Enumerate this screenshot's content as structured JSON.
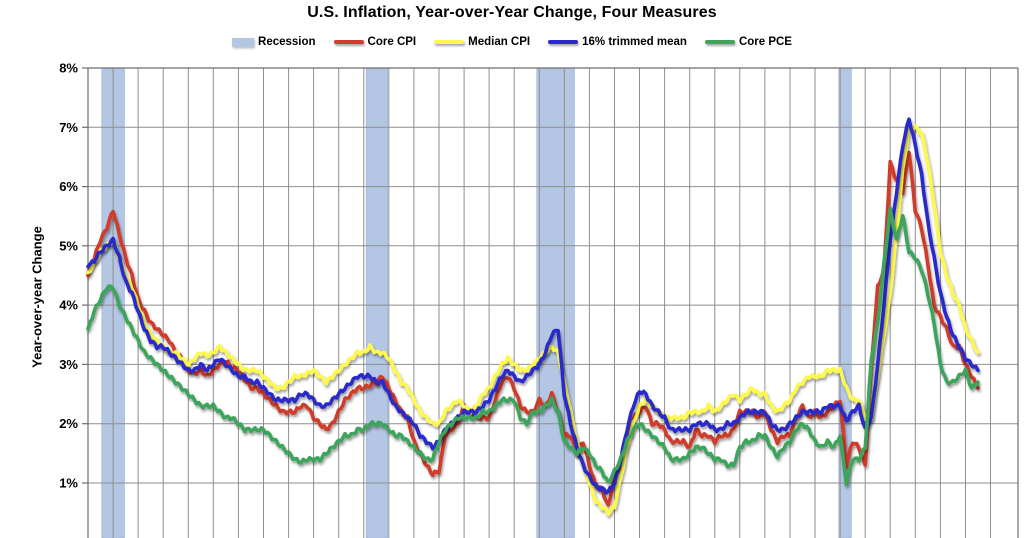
{
  "header": {
    "title": "U.S. Inflation, Year-over-Year Change, Four Measures"
  },
  "legend": [
    {
      "label": "Recession",
      "swatch": "patch",
      "color": "#b3c6e4"
    },
    {
      "label": "Core CPI",
      "swatch": "line",
      "color": "#d13b2b"
    },
    {
      "label": "Median CPI",
      "swatch": "line",
      "color": "#fdf84d"
    },
    {
      "label": "16% trimmed mean",
      "swatch": "line",
      "color": "#2929cb"
    },
    {
      "label": "Core PCE",
      "swatch": "line",
      "color": "#3ea45b"
    }
  ],
  "chart_data": {
    "type": "line",
    "title": "U.S. Inflation, Year-over-Year Change, Four Measures",
    "ylabel": "Year-over-year Change",
    "xlabel": "",
    "y_ticks": [
      "8%",
      "7%",
      "6%",
      "5%",
      "4%",
      "3%",
      "2%",
      "1%",
      "0%"
    ],
    "ylim": [
      0,
      8
    ],
    "grid": true,
    "legend_position": "top",
    "x_unit": "year",
    "x_start": 1990,
    "x_step": 0.25,
    "x_end": 2025.5,
    "x_axis_note": "x-axis labels cut off at bottom edge of screenshot; span is Jan 1990 to mid 2025",
    "recession_bands": [
      [
        1990.55,
        1991.45
      ],
      [
        2001.1,
        2001.95
      ],
      [
        2007.9,
        2009.4
      ],
      [
        2019.95,
        2020.45
      ]
    ],
    "series": [
      {
        "name": "Core CPI",
        "color": "#d13b2b",
        "values": [
          4.5,
          4.8,
          5.1,
          5.3,
          5.6,
          5.2,
          4.8,
          4.5,
          4.1,
          3.9,
          3.7,
          3.6,
          3.5,
          3.4,
          3.2,
          3.1,
          2.9,
          2.85,
          2.9,
          2.8,
          2.9,
          3.0,
          3.05,
          2.95,
          2.9,
          2.75,
          2.6,
          2.6,
          2.5,
          2.4,
          2.3,
          2.2,
          2.2,
          2.2,
          2.3,
          2.3,
          2.1,
          2.0,
          1.9,
          2.0,
          2.2,
          2.4,
          2.5,
          2.6,
          2.6,
          2.65,
          2.7,
          2.8,
          2.6,
          2.4,
          2.2,
          2.1,
          1.7,
          1.5,
          1.3,
          1.15,
          1.2,
          1.8,
          1.9,
          2.0,
          2.3,
          2.2,
          2.1,
          2.1,
          2.1,
          2.4,
          2.7,
          2.8,
          2.6,
          2.3,
          2.2,
          2.2,
          2.4,
          2.3,
          2.5,
          2.2,
          1.8,
          1.8,
          1.5,
          1.7,
          1.3,
          0.95,
          0.9,
          0.6,
          1.1,
          1.3,
          1.8,
          2.1,
          2.2,
          2.3,
          2.0,
          2.0,
          1.9,
          1.7,
          1.7,
          1.7,
          1.6,
          1.9,
          1.8,
          1.8,
          1.7,
          1.8,
          1.8,
          1.9,
          2.2,
          2.2,
          2.2,
          2.1,
          2.2,
          1.9,
          1.7,
          1.8,
          1.8,
          2.1,
          2.3,
          2.1,
          2.2,
          2.1,
          2.2,
          2.3,
          2.4,
          1.3,
          1.7,
          1.6,
          1.3,
          3.0,
          4.3,
          4.6,
          6.4,
          6.1,
          5.9,
          6.6,
          5.6,
          5.3,
          4.7,
          4.0,
          3.8,
          3.6,
          3.3,
          3.3,
          3.0,
          2.8,
          2.6
        ]
      },
      {
        "name": "Median CPI",
        "color": "#fdf84d",
        "values": [
          4.55,
          4.7,
          4.9,
          5.0,
          5.1,
          4.8,
          4.5,
          4.3,
          4.0,
          3.7,
          3.5,
          3.4,
          3.3,
          3.2,
          3.2,
          3.1,
          3.0,
          3.1,
          3.2,
          3.15,
          3.2,
          3.3,
          3.2,
          3.1,
          3.0,
          2.9,
          2.9,
          2.9,
          2.8,
          2.7,
          2.6,
          2.6,
          2.7,
          2.8,
          2.8,
          2.85,
          2.9,
          2.8,
          2.7,
          2.8,
          2.9,
          3.0,
          3.1,
          3.2,
          3.2,
          3.3,
          3.2,
          3.2,
          3.1,
          2.9,
          2.7,
          2.6,
          2.4,
          2.2,
          2.1,
          2.0,
          2.0,
          2.2,
          2.3,
          2.4,
          2.3,
          2.2,
          2.3,
          2.5,
          2.6,
          2.8,
          3.0,
          3.1,
          3.0,
          2.9,
          2.9,
          3.0,
          3.1,
          3.2,
          3.3,
          3.2,
          2.7,
          2.2,
          1.7,
          1.3,
          1.0,
          0.7,
          0.6,
          0.5,
          0.6,
          1.1,
          1.6,
          2.0,
          2.3,
          2.4,
          2.3,
          2.2,
          2.1,
          2.1,
          2.1,
          2.1,
          2.2,
          2.2,
          2.2,
          2.3,
          2.2,
          2.3,
          2.4,
          2.5,
          2.4,
          2.5,
          2.6,
          2.5,
          2.5,
          2.3,
          2.2,
          2.3,
          2.4,
          2.6,
          2.7,
          2.8,
          2.8,
          2.8,
          2.9,
          2.9,
          2.9,
          2.6,
          2.4,
          2.4,
          2.1,
          2.1,
          2.8,
          3.5,
          4.2,
          5.2,
          6.3,
          7.0,
          7.0,
          6.9,
          6.4,
          5.7,
          4.9,
          4.5,
          4.2,
          4.0,
          3.6,
          3.4,
          3.2
        ]
      },
      {
        "name": "16% trimmed mean",
        "color": "#2929cb",
        "values": [
          4.65,
          4.75,
          4.9,
          5.0,
          5.1,
          4.8,
          4.4,
          4.2,
          3.9,
          3.6,
          3.4,
          3.3,
          3.3,
          3.2,
          3.1,
          3.0,
          2.9,
          2.9,
          3.0,
          2.9,
          3.0,
          3.1,
          3.0,
          2.9,
          2.8,
          2.8,
          2.7,
          2.7,
          2.6,
          2.5,
          2.4,
          2.4,
          2.4,
          2.4,
          2.5,
          2.5,
          2.4,
          2.3,
          2.3,
          2.4,
          2.5,
          2.6,
          2.7,
          2.8,
          2.8,
          2.8,
          2.7,
          2.7,
          2.5,
          2.3,
          2.2,
          2.1,
          2.0,
          1.8,
          1.7,
          1.6,
          1.7,
          1.9,
          2.0,
          2.1,
          2.2,
          2.2,
          2.2,
          2.3,
          2.4,
          2.6,
          2.8,
          2.9,
          2.8,
          2.7,
          2.8,
          2.9,
          3.0,
          3.2,
          3.5,
          3.6,
          2.5,
          2.0,
          1.6,
          1.3,
          1.1,
          0.95,
          0.9,
          0.85,
          1.0,
          1.4,
          1.9,
          2.3,
          2.55,
          2.5,
          2.3,
          2.2,
          2.1,
          1.9,
          1.9,
          1.9,
          1.9,
          2.0,
          2.0,
          2.0,
          1.9,
          1.9,
          2.0,
          2.0,
          2.1,
          2.2,
          2.2,
          2.2,
          2.2,
          2.0,
          1.9,
          1.9,
          2.0,
          2.1,
          2.2,
          2.2,
          2.2,
          2.2,
          2.3,
          2.3,
          2.3,
          2.05,
          2.2,
          2.3,
          1.9,
          2.1,
          3.0,
          4.0,
          5.1,
          5.9,
          6.7,
          7.15,
          6.7,
          6.2,
          5.4,
          4.8,
          4.2,
          3.8,
          3.5,
          3.3,
          3.1,
          3.0,
          2.9
        ]
      },
      {
        "name": "Core PCE",
        "color": "#3ea45b",
        "values": [
          3.6,
          3.9,
          4.1,
          4.3,
          4.3,
          4.0,
          3.8,
          3.6,
          3.4,
          3.2,
          3.1,
          3.0,
          2.9,
          2.8,
          2.7,
          2.6,
          2.5,
          2.4,
          2.3,
          2.3,
          2.3,
          2.2,
          2.1,
          2.1,
          2.0,
          1.9,
          1.9,
          1.9,
          1.9,
          1.8,
          1.7,
          1.6,
          1.5,
          1.4,
          1.35,
          1.4,
          1.4,
          1.4,
          1.5,
          1.6,
          1.7,
          1.8,
          1.8,
          1.9,
          1.9,
          2.0,
          2.0,
          2.0,
          1.9,
          1.8,
          1.8,
          1.7,
          1.6,
          1.5,
          1.4,
          1.4,
          1.7,
          1.9,
          2.0,
          2.1,
          2.1,
          2.1,
          2.1,
          2.2,
          2.2,
          2.3,
          2.4,
          2.4,
          2.4,
          2.1,
          2.0,
          2.2,
          2.2,
          2.3,
          2.4,
          2.2,
          1.7,
          1.6,
          1.5,
          1.6,
          1.5,
          1.3,
          1.2,
          1.0,
          1.2,
          1.4,
          1.7,
          1.9,
          2.0,
          1.9,
          1.8,
          1.7,
          1.6,
          1.4,
          1.4,
          1.4,
          1.5,
          1.6,
          1.6,
          1.5,
          1.4,
          1.4,
          1.3,
          1.3,
          1.6,
          1.7,
          1.7,
          1.8,
          1.8,
          1.6,
          1.45,
          1.6,
          1.7,
          1.9,
          2.0,
          1.9,
          1.7,
          1.6,
          1.7,
          1.6,
          1.8,
          1.0,
          1.4,
          1.4,
          1.6,
          3.1,
          3.7,
          4.7,
          5.6,
          5.1,
          5.5,
          4.9,
          4.8,
          4.6,
          4.2,
          3.7,
          3.0,
          2.7,
          2.7,
          2.8,
          2.9,
          2.6,
          2.7
        ]
      }
    ]
  }
}
